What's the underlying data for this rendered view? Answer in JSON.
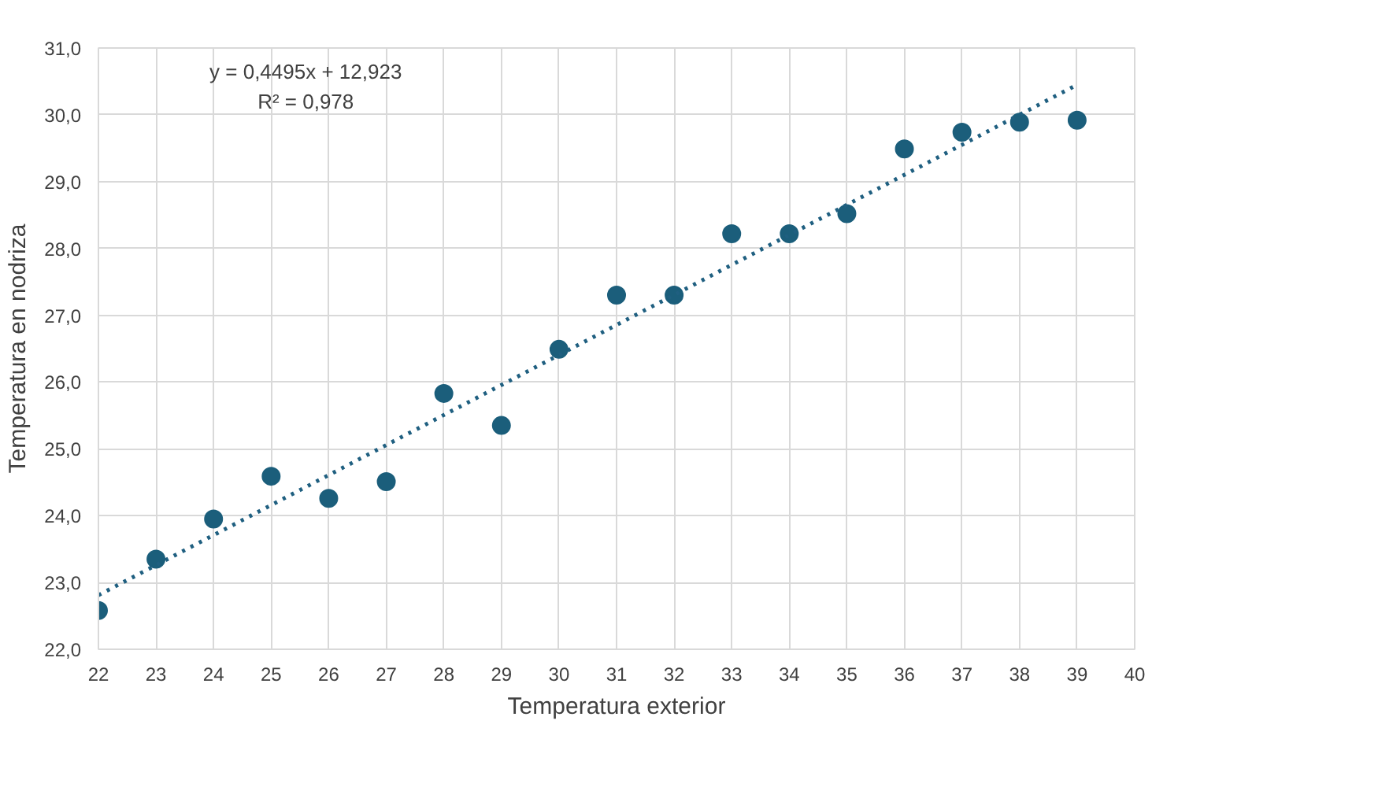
{
  "chart_data": {
    "type": "scatter",
    "xlabel": "Temperatura exterior",
    "ylabel": "Temperatura en nodriza",
    "x": [
      22,
      23,
      24,
      25,
      26,
      27,
      28,
      29,
      30,
      31,
      32,
      33,
      34,
      35,
      36,
      37,
      38,
      39
    ],
    "series": [
      {
        "color": "#1b5e7b",
        "values": [
          22.58,
          23.35,
          23.95,
          24.59,
          24.26,
          24.51,
          25.83,
          25.35,
          26.49,
          27.3,
          27.3,
          28.22,
          28.22,
          28.52,
          29.49,
          29.74,
          29.89,
          29.92
        ],
        "marker": "circle"
      },
      {
        "type": "line",
        "color": "#1f5f80",
        "line_style": "dotted",
        "x": [
          22,
          39
        ],
        "values": [
          22.81,
          30.45
        ]
      }
    ],
    "annotations": [
      "y = 0,4495x + 12,923",
      "R² = 0,978"
    ],
    "xlim": [
      22,
      40
    ],
    "xticks": [
      22,
      23,
      24,
      25,
      26,
      27,
      28,
      29,
      30,
      31,
      32,
      33,
      34,
      35,
      36,
      37,
      38,
      39,
      40
    ],
    "ylim": [
      22,
      31
    ],
    "yticks": [
      {
        "value": 22,
        "label": "22,0"
      },
      {
        "value": 23,
        "label": "23,0"
      },
      {
        "value": 24,
        "label": "24,0"
      },
      {
        "value": 25,
        "label": "25,0"
      },
      {
        "value": 26,
        "label": "26,0"
      },
      {
        "value": 27,
        "label": "27,0"
      },
      {
        "value": 28,
        "label": "28,0"
      },
      {
        "value": 29,
        "label": "29,0"
      },
      {
        "value": 30,
        "label": "30,0"
      },
      {
        "value": 31,
        "label": "31,0"
      }
    ],
    "grid": true
  }
}
